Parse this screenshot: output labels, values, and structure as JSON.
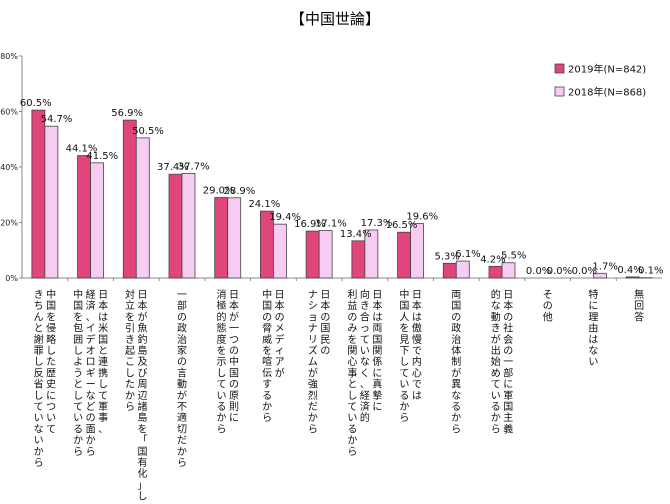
{
  "chart_data": {
    "type": "bar",
    "title": "【中国世論】",
    "xlabel": "",
    "ylabel": "",
    "ylim": [
      0,
      80
    ],
    "yticks": [
      "0%",
      "20%",
      "40%",
      "60%",
      "80%"
    ],
    "legend_position": "top-right",
    "grid": false,
    "colors": {
      "2019": "#e0457b",
      "2018": "#f7ccf2",
      "stroke": "#444444",
      "axis": "#888888"
    },
    "categories": [
      [
        "中国を侵略した歴史について",
        "きちんと謝罪し反省していないから"
      ],
      [
        "日本は米国と連携して軍事、",
        "経済、イデオロギーなどの面から",
        "中国を包囲しようとしているから"
      ],
      [
        "日本が魚釣島及び周辺諸島を「国有化」し、",
        "対立を引き起こしたから"
      ],
      [
        "一部の政治家の言動が不適切だから"
      ],
      [
        "日本が一つの中国の原則に",
        "消極的態度を示しているから"
      ],
      [
        "日本のメディアが",
        "中国の脅威を喧伝するから"
      ],
      [
        "日本の国民の",
        "ナショナリズムが強烈だから"
      ],
      [
        "日本は両国関係に真摯に",
        "向き合っていなく、経済的",
        "利益のみを関心事としているから"
      ],
      [
        "日本は傲慢で内心では",
        "中国人を見下しているから"
      ],
      [
        "両国の政治体制が異なるから"
      ],
      [
        "日本の社会の一部に軍国主義",
        "的な動きが出始めているから"
      ],
      [
        "その他"
      ],
      [
        "特に理由はない"
      ],
      [
        "無回答"
      ]
    ],
    "series": [
      {
        "name": "2019年(N=842)",
        "values": [
          60.5,
          44.1,
          56.9,
          37.4,
          29.0,
          24.1,
          16.9,
          13.4,
          16.5,
          5.3,
          4.2,
          0.0,
          0.0,
          0.4
        ],
        "labels": [
          "60.5%",
          "44.1%",
          "56.9%",
          "37.4%",
          "29.0%",
          "24.1%",
          "16.9%",
          "13.4%",
          "16.5%",
          "5.3%",
          "4.2%",
          "0.0%",
          "0.0%",
          "0.4%"
        ]
      },
      {
        "name": "2018年(N=868)",
        "values": [
          54.7,
          41.5,
          50.5,
          37.7,
          28.9,
          19.4,
          17.1,
          17.3,
          19.6,
          6.1,
          5.5,
          0.0,
          1.7,
          0.1
        ],
        "labels": [
          "54.7%",
          "41.5%",
          "50.5%",
          "37.7%",
          "28.9%",
          "19.4%",
          "17.1%",
          "17.3%",
          "19.6%",
          "6.1%",
          "5.5%",
          "0.0%",
          "1.7%",
          "0.1%"
        ]
      }
    ]
  }
}
